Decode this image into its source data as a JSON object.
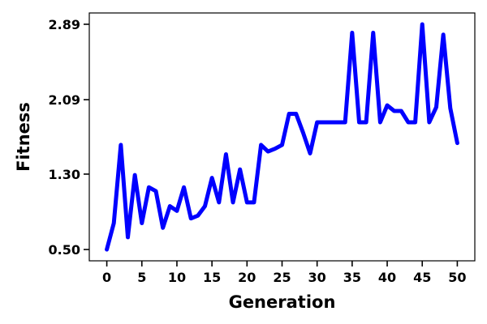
{
  "chart_data": {
    "type": "line",
    "title": "",
    "xlabel": "Generation",
    "ylabel": "Fitness",
    "xlim": [
      -2.5,
      52.5
    ],
    "ylim": [
      0.38,
      3.01
    ],
    "x_ticks": [
      0,
      5,
      10,
      15,
      20,
      25,
      30,
      35,
      40,
      45,
      50
    ],
    "x_tick_labels": [
      "0",
      "5",
      "10",
      "15",
      "20",
      "25",
      "30",
      "35",
      "40",
      "45",
      "50"
    ],
    "y_ticks": [
      0.5,
      1.3,
      2.09,
      2.89
    ],
    "y_tick_labels": [
      "0.50",
      "1.30",
      "2.09",
      "2.89"
    ],
    "grid": false,
    "legend": false,
    "series": [
      {
        "color": "#0000ff",
        "x": [
          0,
          1,
          2,
          3,
          4,
          5,
          6,
          7,
          8,
          9,
          10,
          11,
          12,
          13,
          14,
          15,
          16,
          17,
          18,
          19,
          20,
          21,
          22,
          23,
          24,
          25,
          26,
          27,
          28,
          29,
          30,
          31,
          32,
          33,
          34,
          35,
          36,
          37,
          38,
          39,
          40,
          41,
          42,
          43,
          44,
          45,
          46,
          47,
          48,
          49,
          50
        ],
        "y": [
          0.5,
          0.78,
          1.61,
          0.63,
          1.29,
          0.78,
          1.16,
          1.12,
          0.73,
          0.96,
          0.91,
          1.16,
          0.83,
          0.86,
          0.96,
          1.26,
          1.0,
          1.51,
          1.0,
          1.35,
          1.0,
          1.0,
          1.61,
          1.54,
          1.57,
          1.61,
          1.94,
          1.94,
          1.74,
          1.52,
          1.85,
          1.85,
          1.85,
          1.85,
          1.85,
          2.8,
          1.85,
          1.85,
          2.8,
          1.85,
          2.03,
          1.97,
          1.97,
          1.85,
          1.85,
          2.89,
          1.85,
          2.01,
          2.78,
          2.0,
          1.63
        ]
      }
    ]
  }
}
